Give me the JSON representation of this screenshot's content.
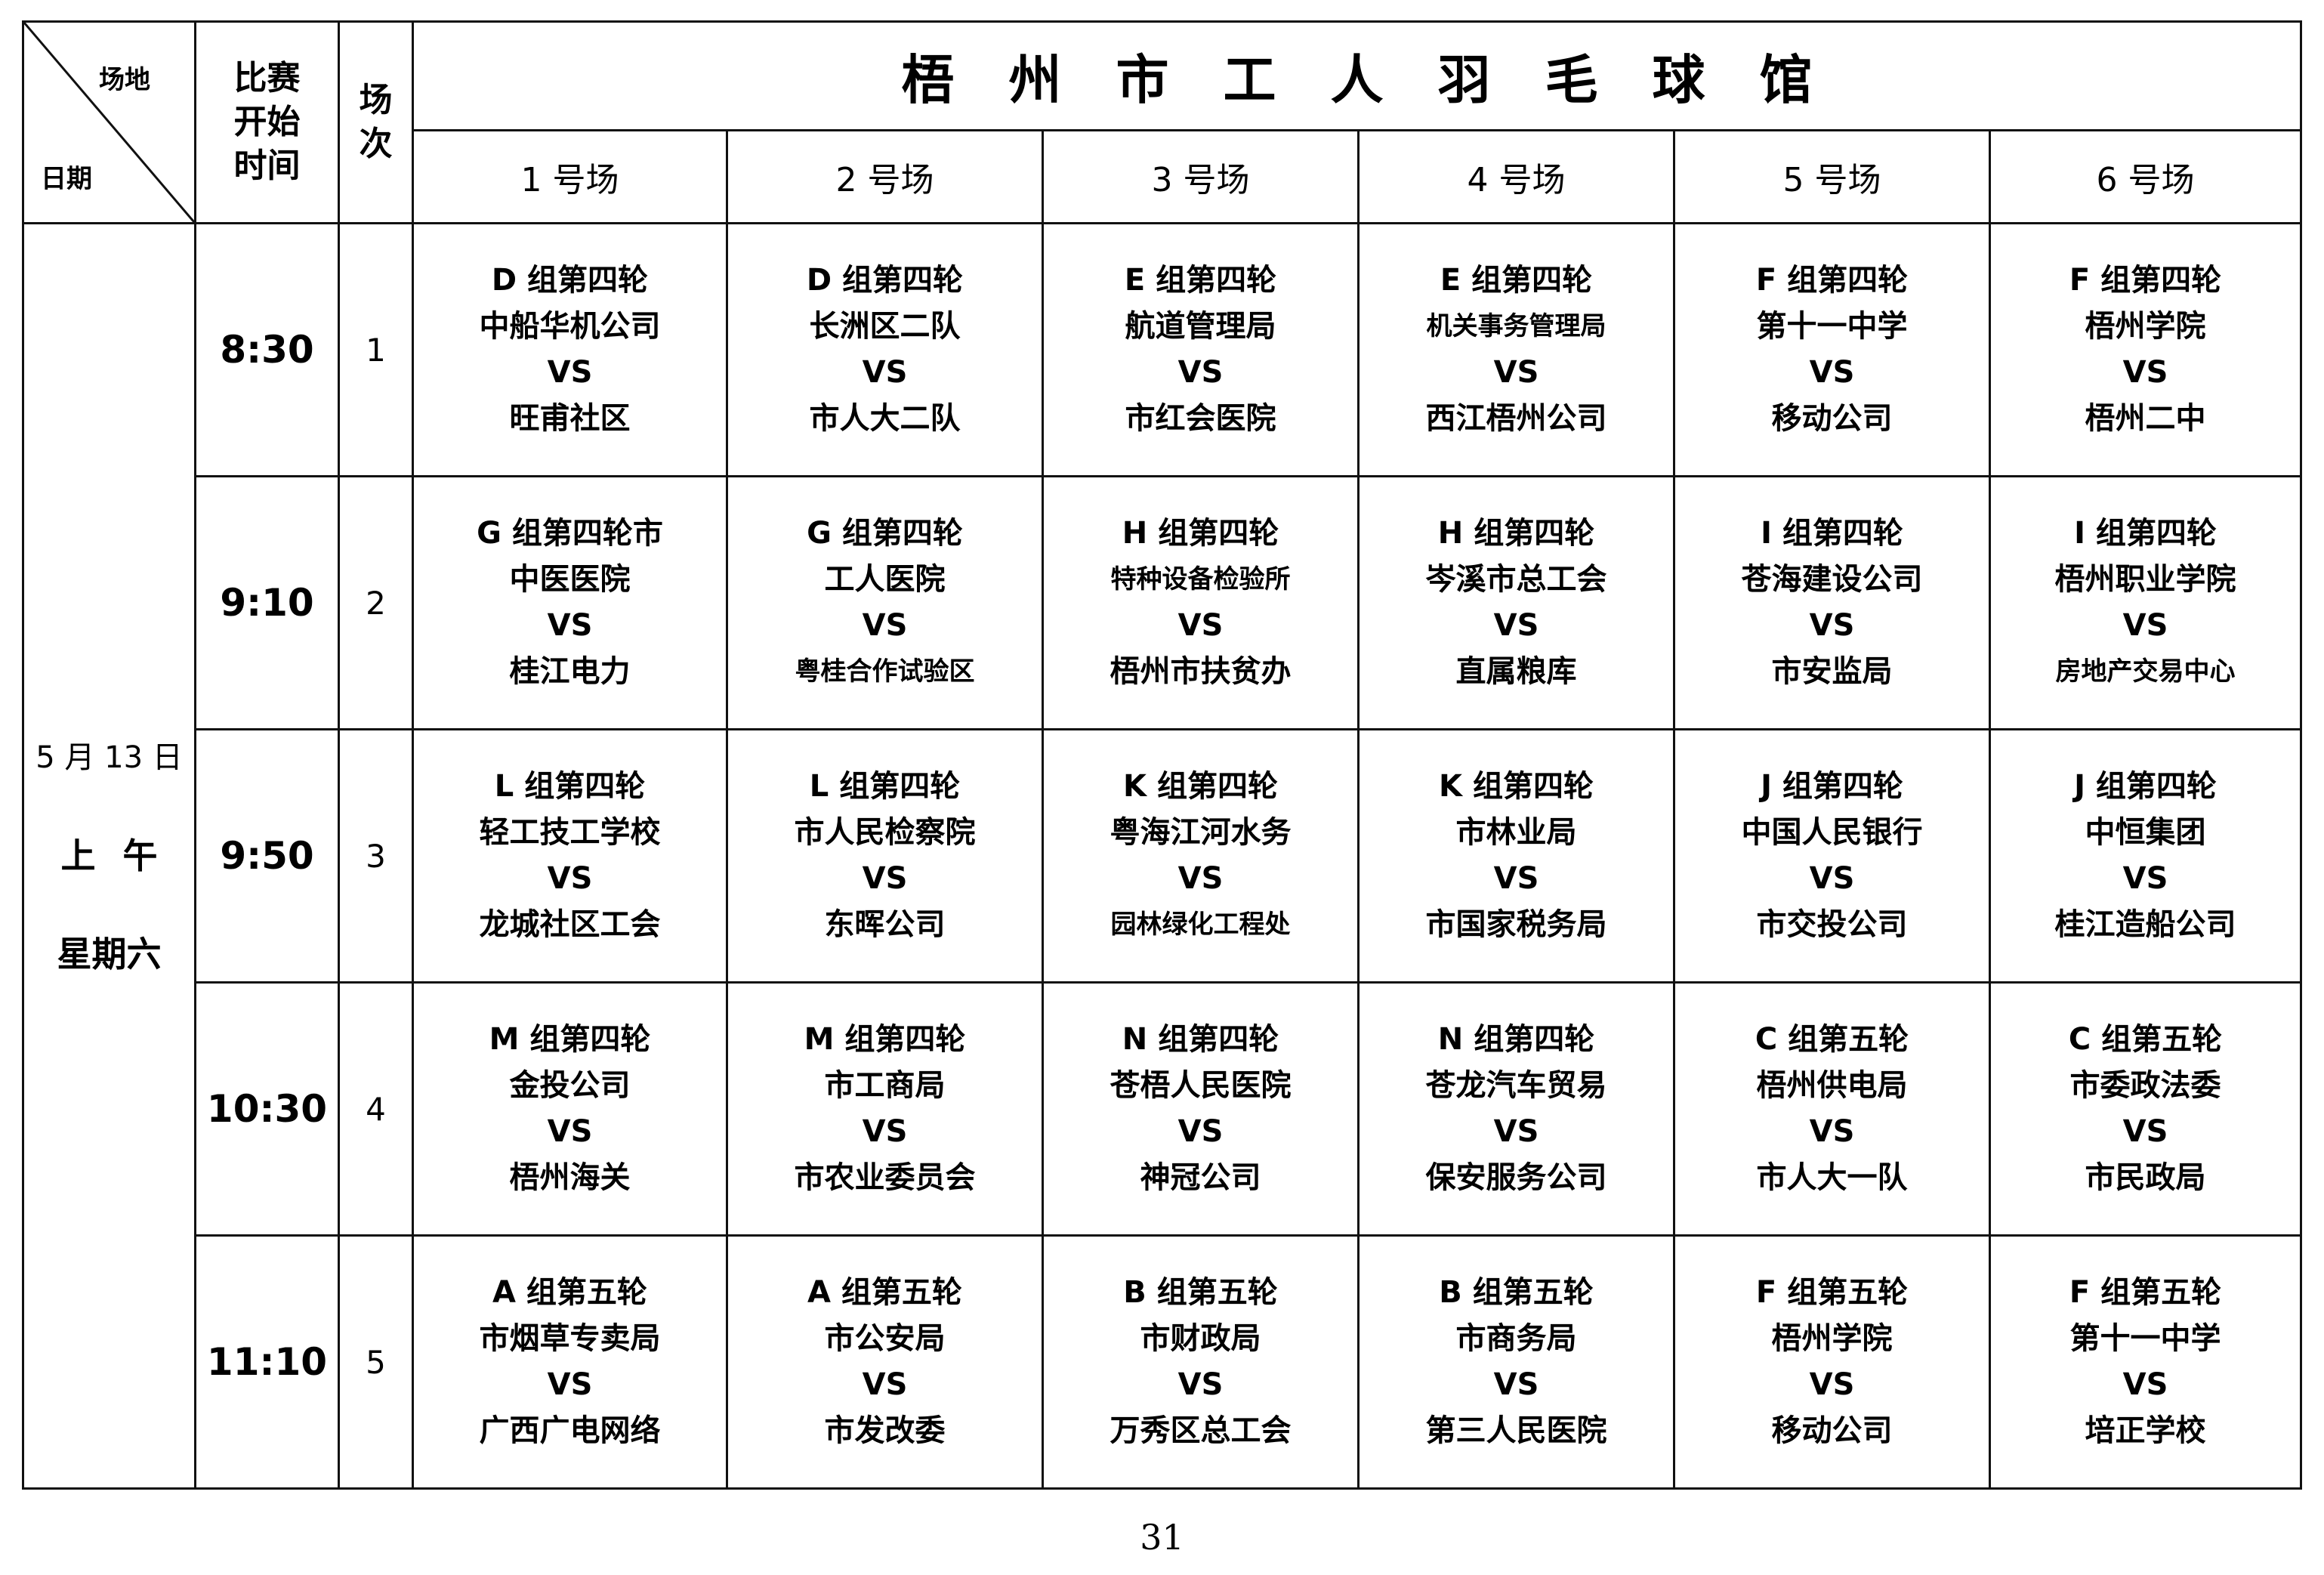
{
  "header": {
    "corner_top": "场地",
    "corner_bottom": "日期",
    "start_time_label": [
      "比赛",
      "开始",
      "时间"
    ],
    "round_label": [
      "场",
      "次"
    ],
    "title": "梧州市工人羽毛球馆",
    "courts": [
      "1 号场",
      "2 号场",
      "3 号场",
      "4 号场",
      "5 号场",
      "6 号场"
    ]
  },
  "date": {
    "day": "5 月 13 日",
    "period": "上午",
    "weekday": "星期六"
  },
  "rows": [
    {
      "time": "8:30",
      "num": "1",
      "matches": [
        {
          "group": "D 组第四轮",
          "team1": "中船华机公司",
          "vs": "VS",
          "team2": "旺甫社区"
        },
        {
          "group": "D 组第四轮",
          "team1": "长洲区二队",
          "vs": "VS",
          "team2": "市人大二队"
        },
        {
          "group": "E 组第四轮",
          "team1": "航道管理局",
          "vs": "VS",
          "team2": "市红会医院"
        },
        {
          "group": "E 组第四轮",
          "team1": "机关事务管理局",
          "vs": "VS",
          "team2": "西江梧州公司"
        },
        {
          "group": "F 组第四轮",
          "team1": "第十一中学",
          "vs": "VS",
          "team2": "移动公司"
        },
        {
          "group": "F 组第四轮",
          "team1": "梧州学院",
          "vs": "VS",
          "team2": "梧州二中"
        }
      ]
    },
    {
      "time": "9:10",
      "num": "2",
      "matches": [
        {
          "group": "G 组第四轮市",
          "team1": "中医医院",
          "vs": "VS",
          "team2": "桂江电力"
        },
        {
          "group": "G 组第四轮",
          "team1": "工人医院",
          "vs": "VS",
          "team2": "粤桂合作试验区"
        },
        {
          "group": "H 组第四轮",
          "team1": "特种设备检验所",
          "vs": "VS",
          "team2": "梧州市扶贫办"
        },
        {
          "group": "H 组第四轮",
          "team1": "岑溪市总工会",
          "vs": "VS",
          "team2": "直属粮库"
        },
        {
          "group": "I 组第四轮",
          "team1": "苍海建设公司",
          "vs": "VS",
          "team2": "市安监局"
        },
        {
          "group": "I 组第四轮",
          "team1": "梧州职业学院",
          "vs": "VS",
          "team2": "房地产交易中心"
        }
      ]
    },
    {
      "time": "9:50",
      "num": "3",
      "matches": [
        {
          "group": "L 组第四轮",
          "team1": "轻工技工学校",
          "vs": "VS",
          "team2": "龙城社区工会"
        },
        {
          "group": "L 组第四轮",
          "team1": "市人民检察院",
          "vs": "VS",
          "team2": "东晖公司"
        },
        {
          "group": "K 组第四轮",
          "team1": "粤海江河水务",
          "vs": "VS",
          "team2": "园林绿化工程处"
        },
        {
          "group": "K 组第四轮",
          "team1": "市林业局",
          "vs": "VS",
          "team2": "市国家税务局"
        },
        {
          "group": "J 组第四轮",
          "team1": "中国人民银行",
          "vs": "VS",
          "team2": "市交投公司"
        },
        {
          "group": "J 组第四轮",
          "team1": "中恒集团",
          "vs": "VS",
          "team2": "桂江造船公司"
        }
      ]
    },
    {
      "time": "10:30",
      "num": "4",
      "matches": [
        {
          "group": "M 组第四轮",
          "team1": "金投公司",
          "vs": "VS",
          "team2": "梧州海关"
        },
        {
          "group": "M 组第四轮",
          "team1": "市工商局",
          "vs": "VS",
          "team2": "市农业委员会"
        },
        {
          "group": "N 组第四轮",
          "team1": "苍梧人民医院",
          "vs": "VS",
          "team2": "神冠公司"
        },
        {
          "group": "N 组第四轮",
          "team1": "苍龙汽车贸易",
          "vs": "VS",
          "team2": "保安服务公司"
        },
        {
          "group": "C 组第五轮",
          "team1": "梧州供电局",
          "vs": "VS",
          "team2": "市人大一队"
        },
        {
          "group": "C 组第五轮",
          "team1": "市委政法委",
          "vs": "VS",
          "team2": "市民政局"
        }
      ]
    },
    {
      "time": "11:10",
      "num": "5",
      "matches": [
        {
          "group": "A 组第五轮",
          "team1": "市烟草专卖局",
          "vs": "VS",
          "team2": "广西广电网络"
        },
        {
          "group": "A 组第五轮",
          "team1": "市公安局",
          "vs": "VS",
          "team2": "市发改委"
        },
        {
          "group": "B 组第五轮",
          "team1": "市财政局",
          "vs": "VS",
          "team2": "万秀区总工会"
        },
        {
          "group": "B 组第五轮",
          "team1": "市商务局",
          "vs": "VS",
          "team2": "第三人民医院"
        },
        {
          "group": "F 组第五轮",
          "team1": "梧州学院",
          "vs": "VS",
          "team2": "移动公司"
        },
        {
          "group": "F 组第五轮",
          "team1": "第十一中学",
          "vs": "VS",
          "team2": "培正学校"
        }
      ]
    }
  ],
  "page_number": "31"
}
